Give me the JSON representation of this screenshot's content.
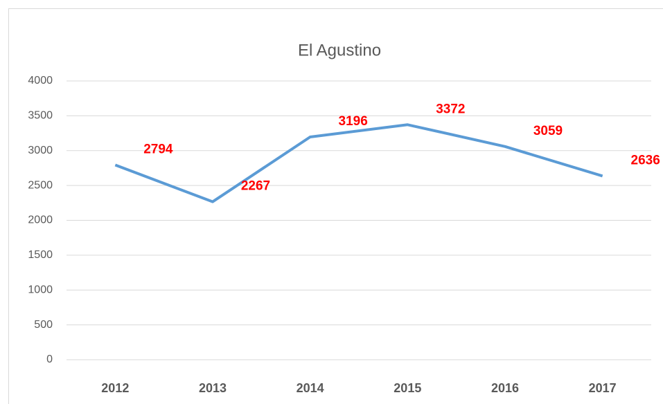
{
  "chart_data": {
    "type": "line",
    "title": "El Agustino",
    "categories": [
      "2012",
      "2013",
      "2014",
      "2015",
      "2016",
      "2017"
    ],
    "series": [
      {
        "name": "El Agustino",
        "color": "#5b9bd5",
        "values": [
          2794,
          2267,
          3196,
          3372,
          3059,
          2636
        ]
      }
    ],
    "ylim": [
      0,
      4000
    ],
    "yticks": [
      0,
      500,
      1000,
      1500,
      2000,
      2500,
      3000,
      3500,
      4000
    ],
    "grid": true,
    "data_label_color": "#ff0000"
  }
}
